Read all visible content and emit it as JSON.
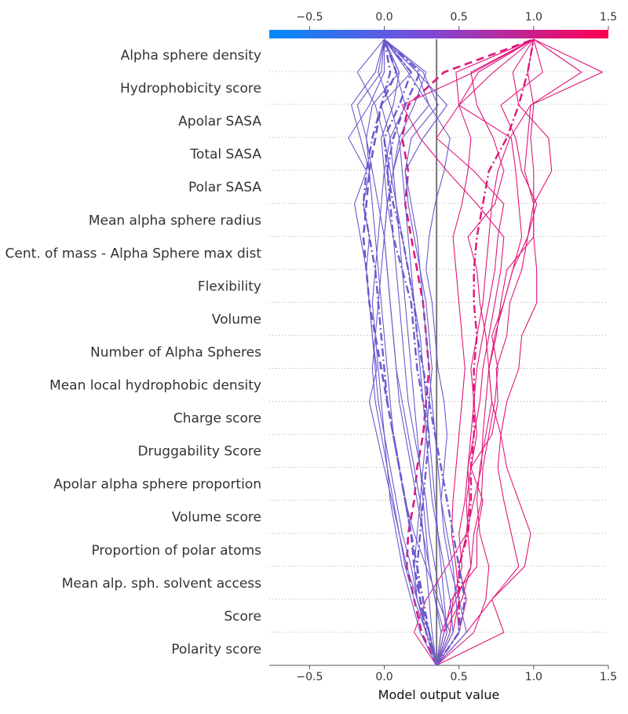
{
  "chart_data": {
    "type": "decision_plot",
    "xlabel": "Model output value",
    "xlim": [
      -0.77,
      1.5
    ],
    "xticks": [
      "−0.5",
      "0.0",
      "0.5",
      "1.0",
      "1.5"
    ],
    "xtick_values": [
      -0.5,
      0.0,
      0.5,
      1.0,
      1.5
    ],
    "base_value": 0.35,
    "features": [
      "Alpha sphere density",
      "Hydrophobicity score",
      "Apolar SASA",
      "Total SASA",
      "Polar SASA",
      "Mean alpha sphere radius",
      "Cent. of mass - Alpha Sphere max dist",
      "Flexibility",
      "Volume",
      "Number of Alpha Spheres",
      "Mean local hydrophobic density",
      "Charge score",
      "Druggability Score",
      "Apolar alpha sphere proportion",
      "Volume score",
      "Proportion of polar atoms",
      "Mean alp. sph. solvent access",
      "Score",
      "Polarity score"
    ],
    "colorbar": {
      "min": -0.77,
      "max": 1.5,
      "low_color": "#008bfb",
      "mid_color": "#7b4bd9",
      "high_color": "#ff0052"
    },
    "line_colors": {
      "low": "#6a5acd",
      "high": "#e0157a"
    },
    "grid_color": "#aaaaaa",
    "note_series": "Each series lists cumulative model output values from the base value (bottom) up through features listed bottom-to-top, ending at top (Alpha sphere density).",
    "series": [
      {
        "style": "solid",
        "final": 1.0,
        "values": [
          0.35,
          0.4,
          0.45,
          0.62,
          0.62,
          0.66,
          0.58,
          0.72,
          0.76,
          0.75,
          0.82,
          0.84,
          0.92,
          0.96,
          1.02,
          0.92,
          0.88,
          0.78,
          1.06,
          1.0
        ]
      },
      {
        "style": "solid",
        "final": 1.0,
        "values": [
          0.35,
          0.55,
          0.72,
          0.9,
          0.85,
          0.8,
          0.76,
          0.78,
          0.82,
          0.9,
          0.92,
          1.02,
          1.02,
          1.0,
          1.0,
          1.0,
          0.98,
          1.0,
          0.96,
          1.0
        ]
      },
      {
        "style": "solid",
        "final": 1.0,
        "values": [
          0.35,
          0.2,
          0.28,
          0.42,
          0.55,
          0.57,
          0.56,
          0.6,
          0.64,
          0.66,
          0.7,
          0.74,
          0.78,
          0.8,
          0.62,
          0.42,
          0.24,
          0.12,
          0.6,
          1.0
        ]
      },
      {
        "style": "solid",
        "final": 1.0,
        "values": [
          0.35,
          0.8,
          0.72,
          0.94,
          0.98,
          0.9,
          0.82,
          0.78,
          0.72,
          0.7,
          0.74,
          0.8,
          0.86,
          0.92,
          0.9,
          0.88,
          0.85,
          0.5,
          0.73,
          1.0
        ]
      },
      {
        "style": "solid",
        "final": 1.0,
        "values": [
          0.35,
          0.6,
          0.68,
          0.7,
          0.64,
          0.62,
          0.64,
          0.68,
          0.72,
          0.7,
          0.68,
          0.64,
          0.62,
          0.56,
          0.74,
          0.8,
          0.73,
          0.62,
          0.58,
          1.0
        ]
      },
      {
        "style": "solid",
        "final": 1.0,
        "values": [
          0.35,
          0.46,
          0.5,
          0.48,
          0.45,
          0.46,
          0.48,
          0.5,
          0.52,
          0.54,
          0.52,
          0.5,
          0.48,
          0.46,
          0.52,
          0.56,
          0.58,
          0.5,
          0.48,
          1.0
        ]
      },
      {
        "style": "solid",
        "final": 1.0,
        "values": [
          0.35,
          0.4,
          0.52,
          0.58,
          0.56,
          0.55,
          0.58,
          0.62,
          0.6,
          0.58,
          0.62,
          0.66,
          0.68,
          0.7,
          0.72,
          0.76,
          0.84,
          0.98,
          1.46,
          1.0
        ]
      },
      {
        "style": "solid",
        "final": 1.0,
        "values": [
          0.35,
          0.38,
          0.48,
          0.58,
          0.6,
          0.65,
          0.66,
          0.7,
          0.74,
          0.76,
          0.72,
          0.8,
          0.86,
          0.96,
          1.0,
          0.94,
          0.96,
          0.98,
          1.32,
          1.0
        ]
      },
      {
        "style": "solid",
        "final": 1.0,
        "values": [
          0.35,
          0.5,
          0.55,
          0.5,
          0.55,
          0.6,
          0.65,
          0.66,
          0.68,
          0.7,
          0.75,
          0.78,
          0.82,
          1.0,
          1.0,
          1.12,
          1.1,
          0.9,
          0.86,
          1.0
        ]
      },
      {
        "style": "solid",
        "final": 1.0,
        "values": [
          0.35,
          0.44,
          0.46,
          0.52,
          0.5,
          0.54,
          0.56,
          0.58,
          0.6,
          0.62,
          0.66,
          0.7,
          0.74,
          0.76,
          0.8,
          0.6,
          0.35,
          0.5,
          0.63,
          1.0
        ]
      },
      {
        "style": "dashdot",
        "final": 1.0,
        "values": [
          0.35,
          0.5,
          0.5,
          0.5,
          0.56,
          0.58,
          0.58,
          0.6,
          0.6,
          0.6,
          0.62,
          0.6,
          0.6,
          0.62,
          0.66,
          0.7,
          0.82,
          0.9,
          0.96,
          1.0
        ]
      },
      {
        "style": "dashed",
        "final": 1.0,
        "values": [
          0.35,
          0.25,
          0.2,
          0.15,
          0.16,
          0.2,
          0.22,
          0.26,
          0.28,
          0.3,
          0.28,
          0.26,
          0.22,
          0.18,
          0.14,
          0.16,
          0.12,
          0.16,
          0.4,
          1.0
        ]
      },
      {
        "style": "solid",
        "final": 0.0,
        "values": [
          0.35,
          0.3,
          0.22,
          0.15,
          0.1,
          0.05,
          0.0,
          -0.05,
          -0.1,
          -0.05,
          -0.08,
          -0.1,
          -0.12,
          -0.1,
          -0.14,
          -0.1,
          -0.16,
          -0.22,
          -0.06,
          0.0
        ]
      },
      {
        "style": "solid",
        "final": 0.0,
        "values": [
          0.35,
          0.3,
          0.22,
          0.18,
          0.12,
          0.08,
          0.04,
          0.0,
          -0.04,
          -0.06,
          -0.08,
          -0.1,
          -0.12,
          -0.16,
          -0.2,
          -0.12,
          -0.24,
          -0.1,
          0.0,
          0.0
        ]
      },
      {
        "style": "solid",
        "final": 0.0,
        "values": [
          0.35,
          0.28,
          0.2,
          0.14,
          0.1,
          0.06,
          0.02,
          -0.02,
          -0.06,
          -0.08,
          -0.06,
          -0.04,
          -0.02,
          0.0,
          0.02,
          0.06,
          0.1,
          0.04,
          -0.04,
          0.0
        ]
      },
      {
        "style": "solid",
        "final": 0.0,
        "values": [
          0.35,
          0.38,
          0.34,
          0.3,
          0.26,
          0.22,
          0.18,
          0.14,
          0.1,
          0.08,
          0.06,
          0.04,
          0.02,
          0.0,
          -0.04,
          -0.08,
          -0.12,
          -0.18,
          -0.02,
          0.0
        ]
      },
      {
        "style": "solid",
        "final": 0.0,
        "values": [
          0.35,
          0.42,
          0.38,
          0.34,
          0.3,
          0.28,
          0.24,
          0.2,
          0.16,
          0.14,
          0.12,
          0.1,
          0.08,
          0.06,
          0.02,
          0.0,
          0.04,
          0.14,
          0.08,
          0.0
        ]
      },
      {
        "style": "solid",
        "final": 0.0,
        "values": [
          0.35,
          0.46,
          0.44,
          0.4,
          0.36,
          0.32,
          0.3,
          0.28,
          0.26,
          0.24,
          0.22,
          0.2,
          0.18,
          0.16,
          0.14,
          0.12,
          0.1,
          0.2,
          0.28,
          0.0
        ]
      },
      {
        "style": "solid",
        "final": 0.0,
        "values": [
          0.35,
          0.5,
          0.48,
          0.46,
          0.42,
          0.38,
          0.36,
          0.34,
          0.32,
          0.3,
          0.28,
          0.26,
          0.24,
          0.22,
          0.18,
          0.14,
          0.26,
          0.42,
          0.22,
          0.0
        ]
      },
      {
        "style": "solid",
        "final": 0.0,
        "values": [
          0.35,
          0.55,
          0.5,
          0.44,
          0.4,
          0.38,
          0.4,
          0.42,
          0.4,
          0.36,
          0.34,
          0.32,
          0.28,
          0.3,
          0.34,
          0.4,
          0.44,
          0.3,
          0.16,
          0.0
        ]
      },
      {
        "style": "solid",
        "final": 0.0,
        "values": [
          0.35,
          0.44,
          0.36,
          0.28,
          0.2,
          0.14,
          0.1,
          0.06,
          0.04,
          0.02,
          0.0,
          -0.02,
          -0.04,
          -0.06,
          -0.08,
          -0.1,
          -0.12,
          -0.08,
          0.1,
          0.0
        ]
      },
      {
        "style": "solid",
        "final": 0.0,
        "values": [
          0.35,
          0.24,
          0.18,
          0.12,
          0.08,
          0.04,
          0.02,
          0.0,
          -0.02,
          -0.04,
          -0.06,
          -0.08,
          -0.06,
          -0.04,
          -0.02,
          0.0,
          -0.02,
          0.06,
          0.1,
          0.0
        ]
      },
      {
        "style": "solid",
        "final": 0.0,
        "values": [
          0.35,
          0.32,
          0.3,
          0.28,
          0.26,
          0.24,
          0.2,
          0.16,
          0.12,
          0.08,
          0.06,
          0.04,
          0.02,
          0.0,
          0.02,
          0.06,
          0.12,
          0.3,
          0.22,
          0.0
        ]
      },
      {
        "style": "solid",
        "final": 0.0,
        "values": [
          0.35,
          0.4,
          0.34,
          0.3,
          0.28,
          0.26,
          0.24,
          0.22,
          0.2,
          0.18,
          0.16,
          0.14,
          0.12,
          0.1,
          0.08,
          0.06,
          0.04,
          -0.02,
          0.18,
          0.0
        ]
      },
      {
        "style": "solid",
        "final": 0.0,
        "values": [
          0.35,
          0.28,
          0.22,
          0.2,
          0.22,
          0.24,
          0.26,
          0.28,
          0.3,
          0.32,
          0.3,
          0.28,
          0.24,
          0.2,
          0.16,
          0.14,
          0.18,
          0.36,
          0.26,
          0.0
        ]
      },
      {
        "style": "solid",
        "final": 0.0,
        "values": [
          0.35,
          0.42,
          0.4,
          0.38,
          0.36,
          0.34,
          0.32,
          0.3,
          0.28,
          0.26,
          0.24,
          0.2,
          0.16,
          0.12,
          0.08,
          0.04,
          0.0,
          -0.06,
          -0.18,
          0.0
        ]
      },
      {
        "style": "dashdot",
        "final": 0.0,
        "values": [
          0.35,
          0.3,
          0.26,
          0.22,
          0.18,
          0.14,
          0.1,
          0.06,
          0.02,
          0.0,
          -0.02,
          -0.04,
          -0.06,
          -0.1,
          -0.14,
          -0.12,
          -0.08,
          -0.02,
          0.04,
          0.0
        ]
      },
      {
        "style": "dashdot",
        "final": 0.0,
        "values": [
          0.35,
          0.5,
          0.54,
          0.5,
          0.46,
          0.42,
          0.38,
          0.34,
          0.3,
          0.26,
          0.22,
          0.2,
          0.16,
          0.12,
          0.06,
          0.02,
          0.0,
          0.1,
          0.18,
          0.0
        ]
      },
      {
        "style": "dashdot",
        "final": 0.0,
        "values": [
          0.35,
          0.28,
          0.24,
          0.22,
          0.24,
          0.26,
          0.28,
          0.3,
          0.26,
          0.22,
          0.2,
          0.18,
          0.12,
          0.06,
          0.04,
          0.02,
          0.06,
          0.14,
          0.24,
          0.0
        ]
      },
      {
        "style": "dashed",
        "final": 0.0,
        "values": [
          0.35,
          0.3,
          0.24,
          0.2,
          0.18,
          0.14,
          0.1,
          0.06,
          0.02,
          -0.02,
          -0.06,
          -0.1,
          -0.12,
          -0.14,
          -0.12,
          -0.1,
          -0.06,
          -0.02,
          0.08,
          0.0
        ]
      }
    ]
  }
}
